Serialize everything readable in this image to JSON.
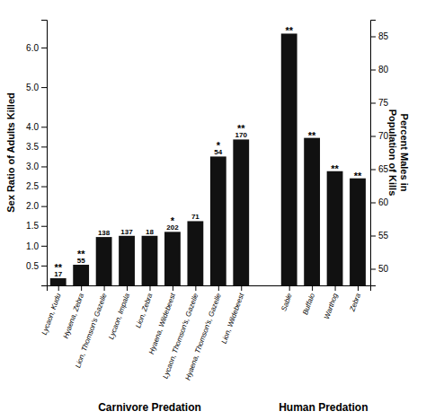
{
  "chart_data": {
    "type": "bar",
    "color": "#111111",
    "ylabel": "Sex Ratio of Adults Killed",
    "y2label": "Percent Males in\nPopulation of Kills",
    "ylim": [
      0,
      6.7
    ],
    "yticks": [
      0.5,
      {
        "value": 1.0,
        "label": "1.0"
      },
      1.5,
      {
        "value": 2.0,
        "label": "2.0"
      },
      2.5,
      {
        "value": 3.0,
        "label": "3.0"
      },
      3.5,
      {
        "value": 4.0,
        "label": "4.0"
      },
      {
        "value": 5.0,
        "label": "5.0"
      },
      {
        "value": 6.0,
        "label": "6.0"
      }
    ],
    "y2lim": [
      47.5,
      87.5
    ],
    "y2ticks": [
      50,
      55,
      60,
      65,
      70,
      75,
      80,
      85
    ],
    "groups": [
      {
        "label": "Carnivore Predation",
        "categories": [
          "Lycaon, Kudu",
          "Hyaena, Zebra",
          "Lion, Thomson's Gazelle",
          "Lycaon, Impala",
          "Lion, Zebra",
          "Hyaena, Wildebeest",
          "Lycaon, Thomson's, Gazelle",
          "Hyaena, Thomson's, Gazelle",
          "Lion, Wildebeest"
        ],
        "values": [
          0.18,
          0.52,
          1.22,
          1.25,
          1.25,
          1.35,
          1.62,
          3.25,
          3.68
        ],
        "n": [
          17,
          55,
          138,
          137,
          18,
          202,
          71,
          54,
          170
        ],
        "significance": [
          "**",
          "**",
          null,
          null,
          null,
          "*",
          null,
          "*",
          "**"
        ]
      },
      {
        "label": "Human Predation",
        "categories": [
          "Sable",
          "Buffalo",
          "Warthog",
          "Zebra"
        ],
        "values": [
          6.35,
          3.72,
          2.88,
          2.7
        ],
        "significance": [
          "**",
          "**",
          "**",
          "**"
        ]
      }
    ]
  }
}
